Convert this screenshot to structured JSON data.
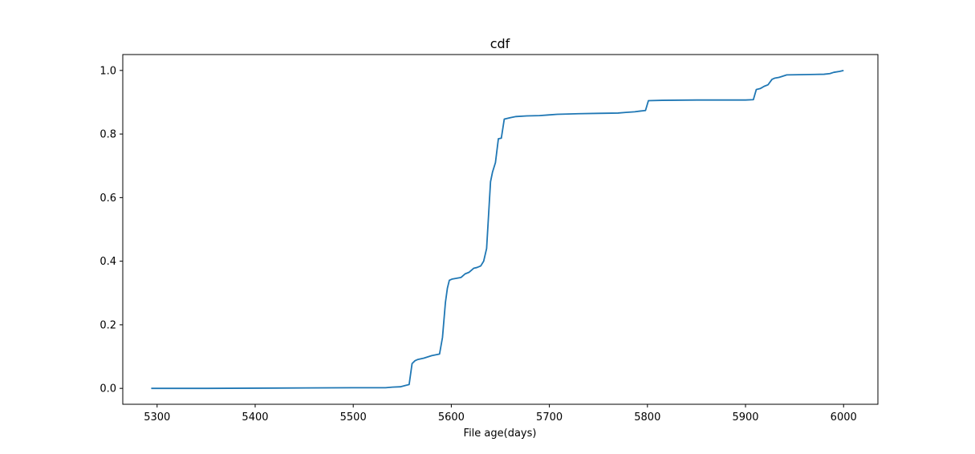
{
  "chart_data": {
    "type": "line",
    "title": "cdf",
    "xlabel": "File age(days)",
    "ylabel": "",
    "xlim": [
      5265,
      6035
    ],
    "ylim": [
      -0.05,
      1.05
    ],
    "xticks": [
      5300,
      5400,
      5500,
      5600,
      5700,
      5800,
      5900,
      6000
    ],
    "xtick_labels": [
      "5300",
      "5400",
      "5500",
      "5600",
      "5700",
      "5800",
      "5900",
      "6000"
    ],
    "yticks": [
      0.0,
      0.2,
      0.4,
      0.6,
      0.8,
      1.0
    ],
    "ytick_labels": [
      "0.0",
      "0.2",
      "0.4",
      "0.6",
      "0.8",
      "1.0"
    ],
    "grid": false,
    "colors": {
      "line": "#1f77b4"
    },
    "series": [
      {
        "x": [
          5294,
          5350,
          5420,
          5500,
          5533,
          5540,
          5548,
          5553,
          5557,
          5560,
          5563,
          5566,
          5572,
          5580,
          5588,
          5591,
          5594,
          5596,
          5598,
          5601,
          5605,
          5610,
          5614,
          5618,
          5623,
          5626,
          5630,
          5633,
          5636,
          5640,
          5642,
          5645,
          5648,
          5651,
          5654,
          5661,
          5666,
          5677,
          5690,
          5699,
          5708,
          5730,
          5750,
          5770,
          5778,
          5787,
          5792,
          5798,
          5801,
          5815,
          5850,
          5900,
          5908,
          5911,
          5915,
          5919,
          5923,
          5927,
          5930,
          5934,
          5937,
          5942,
          5960,
          5980,
          5986,
          5990,
          5996,
          6000
        ],
        "y": [
          0.0,
          0.0,
          0.001,
          0.002,
          0.002,
          0.004,
          0.005,
          0.009,
          0.012,
          0.078,
          0.087,
          0.091,
          0.095,
          0.103,
          0.108,
          0.16,
          0.27,
          0.315,
          0.34,
          0.344,
          0.346,
          0.349,
          0.36,
          0.365,
          0.378,
          0.38,
          0.385,
          0.4,
          0.44,
          0.65,
          0.68,
          0.71,
          0.785,
          0.787,
          0.847,
          0.852,
          0.855,
          0.857,
          0.858,
          0.86,
          0.862,
          0.864,
          0.865,
          0.866,
          0.868,
          0.87,
          0.872,
          0.874,
          0.905,
          0.906,
          0.907,
          0.907,
          0.908,
          0.94,
          0.943,
          0.95,
          0.955,
          0.972,
          0.976,
          0.978,
          0.981,
          0.986,
          0.987,
          0.988,
          0.99,
          0.994,
          0.997,
          1.0
        ]
      }
    ]
  }
}
